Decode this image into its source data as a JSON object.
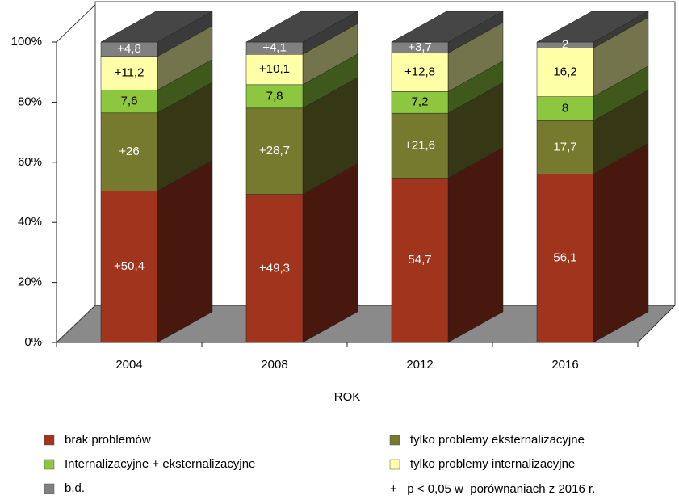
{
  "chart_data": {
    "type": "stacked-bar-3d",
    "x_label": "ROK",
    "categories": [
      "2004",
      "2008",
      "2012",
      "2016"
    ],
    "ylim": [
      0,
      100
    ],
    "yticks": [
      {
        "value": 0,
        "label": "0%"
      },
      {
        "value": 20,
        "label": "20%"
      },
      {
        "value": 40,
        "label": "40%"
      },
      {
        "value": 60,
        "label": "60%"
      },
      {
        "value": 80,
        "label": "80%"
      },
      {
        "value": 100,
        "label": "100%"
      }
    ],
    "series": [
      {
        "name": "brak problemów",
        "color": "#a0341c",
        "label_color": "#ffffff",
        "values": [
          50.4,
          49.3,
          54.7,
          56.1
        ],
        "value_labels": [
          "+50,4",
          "+49,3",
          "54,7",
          "56,1"
        ]
      },
      {
        "name": "tylko problemy eksternalizacyjne",
        "color": "#767a2e",
        "label_color": "#ffffff",
        "values": [
          26,
          28.7,
          21.6,
          17.7
        ],
        "value_labels": [
          "+26",
          "+28,7",
          "+21,6",
          "17,7"
        ]
      },
      {
        "name": "Internalizacyjne + eksternalizacyjne",
        "color": "#8dc63f",
        "label_color": "#000000",
        "values": [
          7.6,
          7.8,
          7.2,
          8
        ],
        "value_labels": [
          "7,6",
          "7,8",
          "7,2",
          "8"
        ]
      },
      {
        "name": "tylko problemy internalizacyjne",
        "color": "#ffffa8",
        "label_color": "#000000",
        "values": [
          11.2,
          10.1,
          12.8,
          16.2
        ],
        "value_labels": [
          "+11,2",
          "+10,1",
          "+12,8",
          "16,2"
        ]
      },
      {
        "name": "b.d.",
        "color": "#808080",
        "label_color": "#ffffff",
        "values": [
          4.8,
          4.1,
          3.7,
          2
        ],
        "value_labels": [
          "+4,8",
          "+4,1",
          "+3,7",
          "2"
        ]
      }
    ],
    "footnote": "+   p < 0,05 w  porównaniach z 2016 r."
  }
}
